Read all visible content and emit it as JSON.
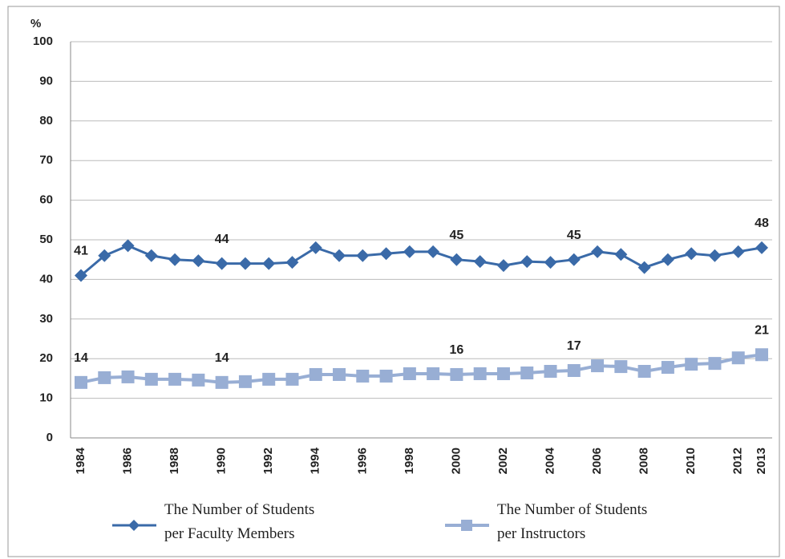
{
  "chart_data": {
    "type": "line",
    "y_label": "%",
    "categories": [
      "1984",
      null,
      "1986",
      null,
      "1988",
      null,
      "1990",
      null,
      "1992",
      null,
      "1994",
      null,
      "1996",
      null,
      "1998",
      null,
      "2000",
      null,
      "2002",
      null,
      "2004",
      null,
      "2006",
      null,
      "2008",
      null,
      "2010",
      null,
      "2012",
      "2013"
    ],
    "series": [
      {
        "name": "The Number of Students\nper Faculty Members",
        "color": "#3a6aa8",
        "marker": "diamond",
        "values": [
          41,
          46,
          48.5,
          46,
          45,
          44.7,
          44,
          44,
          44,
          44.3,
          48,
          46,
          46,
          46.5,
          47,
          47,
          45,
          44.5,
          43.5,
          44.5,
          44.3,
          45,
          47,
          46.3,
          43,
          45,
          46.5,
          46,
          47,
          48
        ],
        "value_labels": [
          "41",
          null,
          null,
          null,
          null,
          null,
          "44",
          null,
          null,
          null,
          null,
          null,
          null,
          null,
          null,
          null,
          "45",
          null,
          null,
          null,
          null,
          "45",
          null,
          null,
          null,
          null,
          null,
          null,
          null,
          "48"
        ]
      },
      {
        "name": "The Number of Students\nper Instructors",
        "color": "#98aed4",
        "marker": "square",
        "values": [
          14,
          15.2,
          15.4,
          14.8,
          14.8,
          14.6,
          14,
          14.2,
          14.8,
          14.8,
          16,
          16,
          15.6,
          15.6,
          16.2,
          16.2,
          16,
          16.2,
          16.2,
          16.4,
          16.8,
          17,
          18.2,
          18,
          16.8,
          17.8,
          18.6,
          18.8,
          20.2,
          21
        ],
        "value_labels": [
          "14",
          null,
          null,
          null,
          null,
          null,
          "14",
          null,
          null,
          null,
          null,
          null,
          null,
          null,
          null,
          null,
          "16",
          null,
          null,
          null,
          null,
          "17",
          null,
          null,
          null,
          null,
          null,
          null,
          null,
          "21"
        ]
      }
    ],
    "ylim": [
      0,
      100
    ],
    "yticks": [
      0,
      10,
      20,
      30,
      40,
      50,
      60,
      70,
      80,
      90,
      100
    ],
    "grid": true,
    "legend": "bottom"
  }
}
